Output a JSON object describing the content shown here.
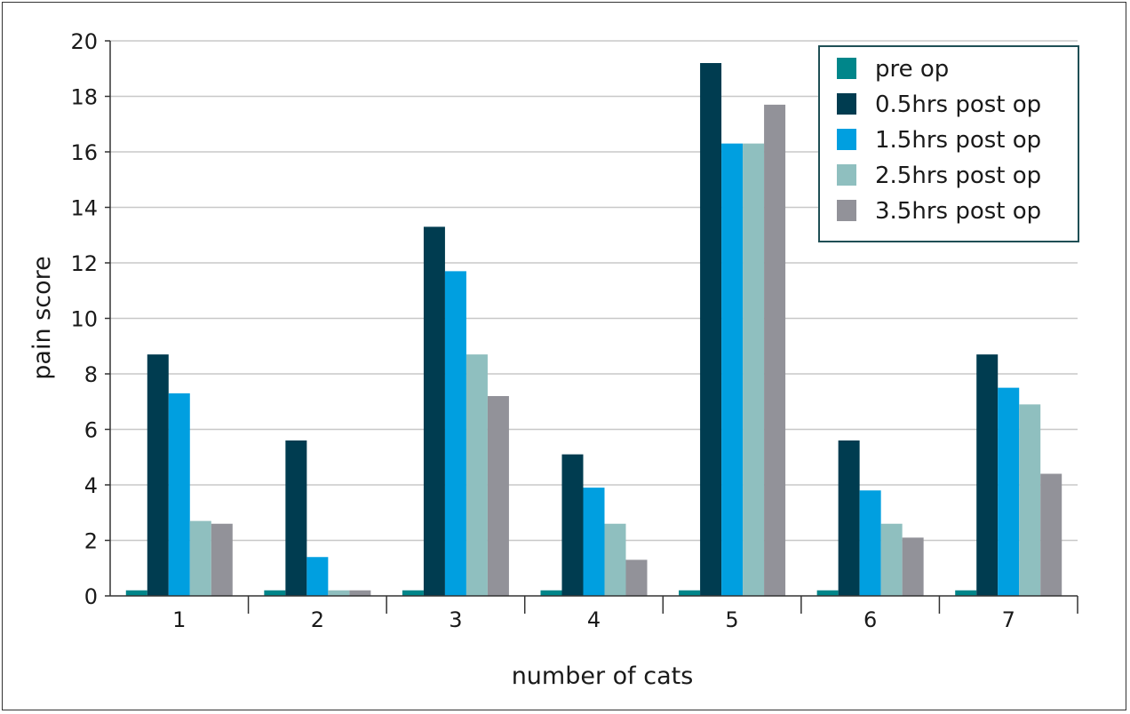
{
  "chart_data": {
    "type": "bar",
    "title": "",
    "xlabel": "number of cats",
    "ylabel": "pain score",
    "categories": [
      "1",
      "2",
      "3",
      "4",
      "5",
      "6",
      "7"
    ],
    "ylim": [
      0,
      20
    ],
    "yticks": [
      0,
      2,
      4,
      6,
      8,
      10,
      12,
      14,
      16,
      18,
      20
    ],
    "grid": "horizontal",
    "legend_position": "top-right",
    "series": [
      {
        "name": "pre op",
        "color": "#00868a",
        "values": [
          0.2,
          0.2,
          0.2,
          0.2,
          0.2,
          0.2,
          0.2
        ]
      },
      {
        "name": "0.5hrs post op",
        "color": "#003c50",
        "values": [
          8.7,
          5.6,
          13.3,
          5.1,
          19.2,
          5.6,
          8.7
        ]
      },
      {
        "name": "1.5hrs post op",
        "color": "#009fe0",
        "values": [
          7.3,
          1.4,
          11.7,
          3.9,
          16.3,
          3.8,
          7.5
        ]
      },
      {
        "name": "2.5hrs post op",
        "color": "#8fbfbf",
        "values": [
          2.7,
          0.2,
          8.7,
          2.6,
          16.3,
          2.6,
          6.9
        ]
      },
      {
        "name": "3.5hrs post op",
        "color": "#929299",
        "values": [
          2.6,
          0.2,
          7.2,
          1.3,
          17.7,
          2.1,
          4.4
        ]
      }
    ]
  }
}
